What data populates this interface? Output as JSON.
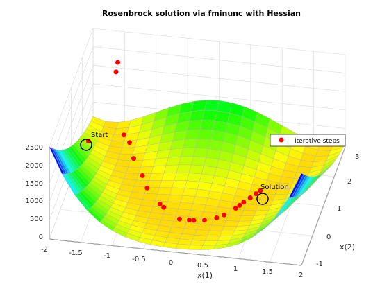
{
  "chart_data": {
    "type": "scatter",
    "title": "Rosenbrock solution via fminunc with Hessian",
    "xlabel": "x(1)",
    "ylabel": "x(2)",
    "xlim": [
      -2,
      2
    ],
    "ylim": [
      -1,
      3
    ],
    "zlim": [
      0,
      2500
    ],
    "x_ticks": [
      "-2",
      "-1.5",
      "-1",
      "-0.5",
      "0",
      "0.5",
      "1",
      "1.5",
      "2"
    ],
    "y_ticks": [
      "-1",
      "0",
      "1",
      "2",
      "3"
    ],
    "z_ticks": [
      "0",
      "500",
      "1000",
      "1500",
      "2000",
      "2500"
    ],
    "surface": "f(x) = 100*(x2 - x1^2)^2 + (1 - x1)^2",
    "grid": true,
    "legend": {
      "position": "top-right",
      "entries": [
        "Iterative steps"
      ]
    },
    "annotations": [
      {
        "text": "Start",
        "x": -1.9,
        "y": 2
      },
      {
        "text": "Solution",
        "x": 1,
        "y": 1
      }
    ],
    "series": [
      {
        "name": "Iterative steps",
        "color": "#ff0000",
        "points": [
          {
            "x": -1.9,
            "y": 2.0,
            "z": 267.6
          },
          {
            "x": -1.4,
            "y": 1.8,
            "z": 2650
          },
          {
            "x": -1.55,
            "y": 2.5,
            "z": 1800
          },
          {
            "x": -1.2,
            "y": 1.2,
            "z": 1200
          },
          {
            "x": -1.1,
            "y": 1.15,
            "z": 1050
          },
          {
            "x": -1.0,
            "y": 0.95,
            "z": 800
          },
          {
            "x": -0.8,
            "y": 0.6,
            "z": 650
          },
          {
            "x": -0.7,
            "y": 0.45,
            "z": 450
          },
          {
            "x": -0.45,
            "y": 0.18,
            "z": 280
          },
          {
            "x": -0.38,
            "y": 0.12,
            "z": 250
          },
          {
            "x": -0.1,
            "y": -0.05,
            "z": 120
          },
          {
            "x": 0.05,
            "y": -0.02,
            "z": 95
          },
          {
            "x": 0.12,
            "y": -0.01,
            "z": 90
          },
          {
            "x": 0.28,
            "y": 0.05,
            "z": 75
          },
          {
            "x": 0.45,
            "y": 0.18,
            "z": 65
          },
          {
            "x": 0.55,
            "y": 0.28,
            "z": 80
          },
          {
            "x": 0.7,
            "y": 0.48,
            "z": 130
          },
          {
            "x": 0.75,
            "y": 0.55,
            "z": 160
          },
          {
            "x": 0.8,
            "y": 0.63,
            "z": 190
          },
          {
            "x": 0.88,
            "y": 0.77,
            "z": 210
          },
          {
            "x": 0.95,
            "y": 0.9,
            "z": 230
          },
          {
            "x": 1.0,
            "y": 1.0,
            "z": 240
          }
        ]
      }
    ]
  },
  "marker_color": "#ff0000"
}
